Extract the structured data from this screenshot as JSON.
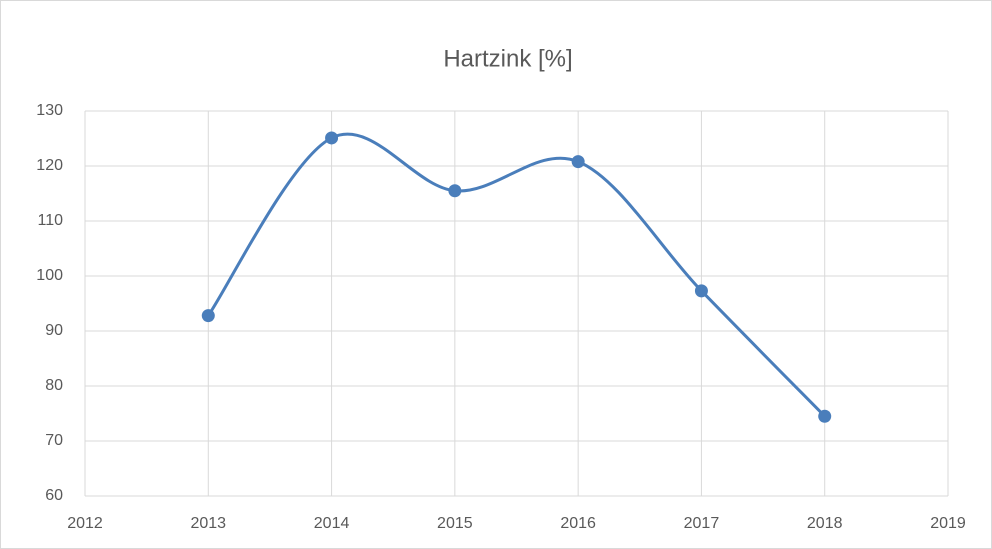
{
  "chart_data": {
    "type": "line",
    "title": "Hartzink [%]",
    "x": [
      2013,
      2014,
      2015,
      2016,
      2017,
      2018
    ],
    "series": [
      {
        "name": "Hartzink [%]",
        "color": "#4a7ebb",
        "values": [
          92.8,
          125.1,
          115.5,
          120.8,
          97.3,
          74.5
        ]
      }
    ],
    "xlim": [
      2012,
      2019
    ],
    "xticks": [
      2012,
      2013,
      2014,
      2015,
      2016,
      2017,
      2018,
      2019
    ],
    "ylim": [
      60,
      130
    ],
    "yticks": [
      60,
      70,
      80,
      90,
      100,
      110,
      120,
      130
    ],
    "grid": true,
    "smooth": true
  }
}
